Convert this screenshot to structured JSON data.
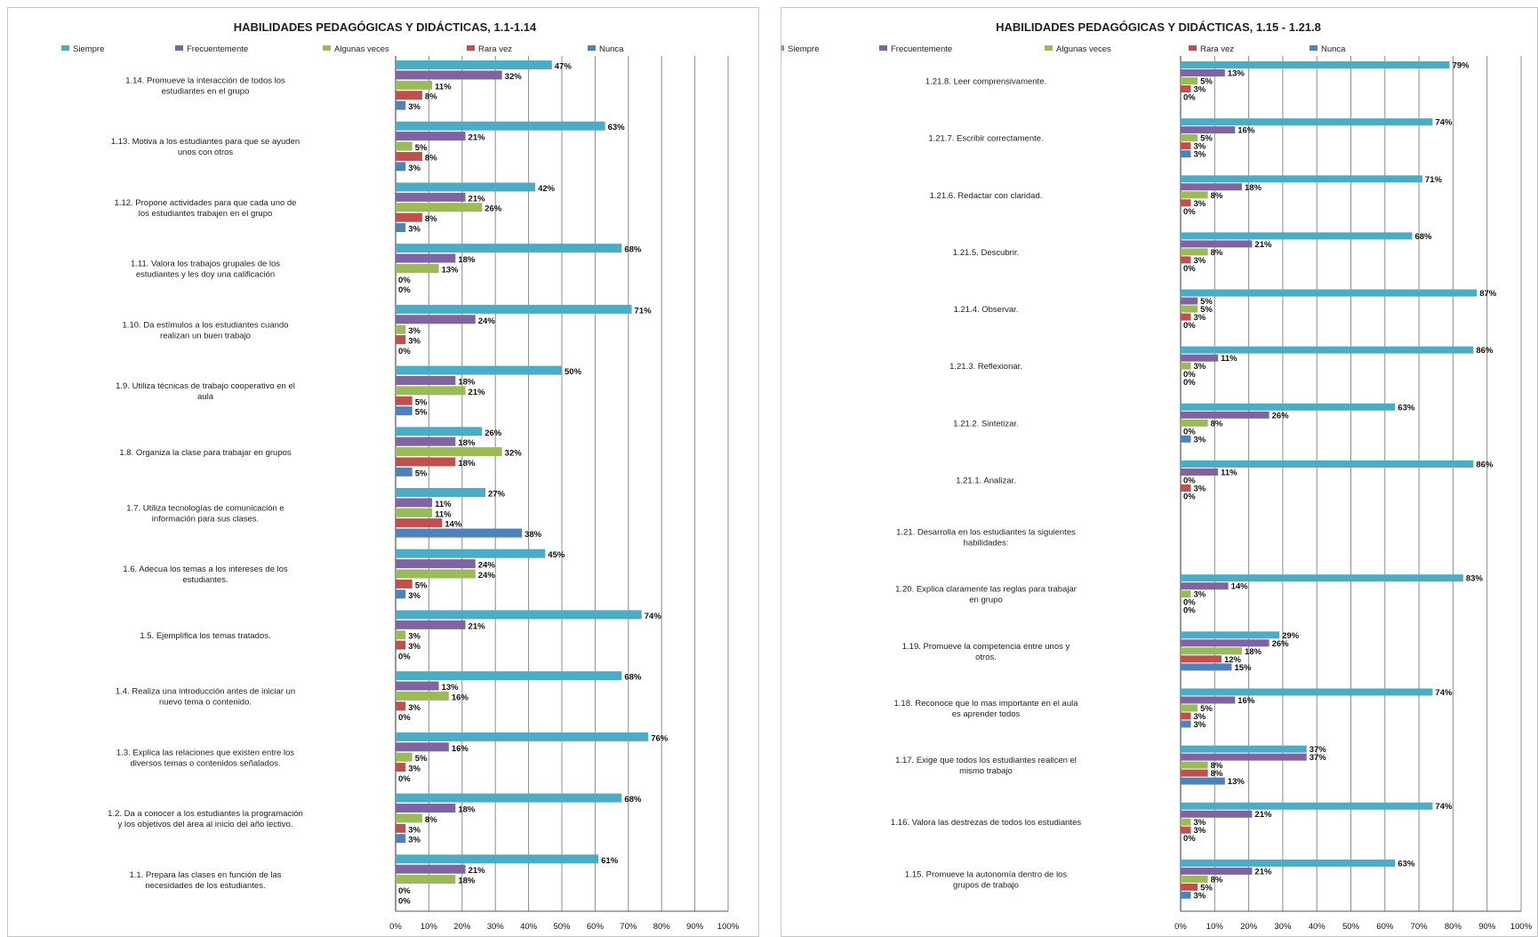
{
  "chart_data": [
    {
      "type": "bar",
      "orientation": "horizontal",
      "title": "HABILIDADES PEDAGÓGICAS Y DIDÁCTICAS, 1.1-1.14",
      "legend_position": "top",
      "xlim": [
        0,
        100
      ],
      "x_ticks": [
        "0%",
        "10%",
        "20%",
        "30%",
        "40%",
        "50%",
        "60%",
        "70%",
        "80%",
        "90%",
        "100%"
      ],
      "gridlines": true,
      "series": [
        {
          "name": "Siempre",
          "color": "#4bacc6"
        },
        {
          "name": "Frecuentemente",
          "color": "#8064a2"
        },
        {
          "name": "Algunas veces",
          "color": "#9bbb59"
        },
        {
          "name": "Rara vez",
          "color": "#c0504d"
        },
        {
          "name": "Nunca",
          "color": "#4f81bd"
        }
      ],
      "categories": [
        {
          "label": [
            "1.14.  Promueve la interacción de todos los",
            "estudiantes en el grupo"
          ],
          "values": [
            47,
            32,
            11,
            8,
            3
          ],
          "labels": [
            "47%",
            "32%",
            "11%",
            "8%",
            "3%"
          ]
        },
        {
          "label": [
            "1.13.  Motiva  a los estudiantes para que se ayuden",
            "unos    con otros"
          ],
          "values": [
            63,
            21,
            5,
            8,
            3
          ],
          "labels": [
            "63%",
            "21%",
            "5%",
            "8%",
            "3%"
          ]
        },
        {
          "label": [
            "1.12.  Propone actividades para  que cada uno de",
            "los estudiantes trabajen en el grupo"
          ],
          "values": [
            42,
            21,
            26,
            8,
            3
          ],
          "labels": [
            "42%",
            "21%",
            "26%",
            "8%",
            "3%"
          ]
        },
        {
          "label": [
            "1.11.  Valora los trabajos grupales de los",
            "estudiantes y les doy una calificación"
          ],
          "values": [
            68,
            18,
            13,
            0,
            0
          ],
          "labels": [
            "68%",
            "18%",
            "13%",
            "0%",
            "0%"
          ]
        },
        {
          "label": [
            "1.10.  Da estímulos a los estudiantes cuando",
            "realizan un buen trabajo"
          ],
          "values": [
            71,
            24,
            3,
            3,
            0
          ],
          "labels": [
            "71%",
            "24%",
            "3%",
            "3%",
            "0%"
          ]
        },
        {
          "label": [
            "1.9.  Utiliza técnicas de trabajo cooperativo en el",
            "aula"
          ],
          "values": [
            50,
            18,
            21,
            5,
            5
          ],
          "labels": [
            "50%",
            "18%",
            "21%",
            "5%",
            "5%"
          ]
        },
        {
          "label": [
            "1.8.  Organiza la clase para trabajar en grupos"
          ],
          "values": [
            26,
            18,
            32,
            18,
            5
          ],
          "labels": [
            "26%",
            "18%",
            "32%",
            "18%",
            "5%"
          ]
        },
        {
          "label": [
            "1.7.   Utiliza tecnologías de comunicación e",
            "información para sus clases."
          ],
          "values": [
            27,
            11,
            11,
            14,
            38
          ],
          "labels": [
            "27%",
            "11%",
            "11%",
            "14%",
            "38%"
          ]
        },
        {
          "label": [
            "1.6.    Adecua los temas a los intereses de los",
            "estudiantes."
          ],
          "values": [
            45,
            24,
            24,
            5,
            3
          ],
          "labels": [
            "45%",
            "24%",
            "24%",
            "5%",
            "3%"
          ]
        },
        {
          "label": [
            "1.5.     Ejemplifica los temas tratados."
          ],
          "values": [
            74,
            21,
            3,
            3,
            0
          ],
          "labels": [
            "74%",
            "21%",
            "3%",
            "3%",
            "0%"
          ]
        },
        {
          "label": [
            "1.4.  Realiza una introducción antes de iniciar un",
            "nuevo tema o contenido."
          ],
          "values": [
            68,
            13,
            16,
            3,
            0
          ],
          "labels": [
            "68%",
            "13%",
            "16%",
            "3%",
            "0%"
          ]
        },
        {
          "label": [
            "1.3.  Explica las relaciones que existen entre los",
            "diversos temas o contenidos señalados."
          ],
          "values": [
            76,
            16,
            5,
            3,
            0
          ],
          "labels": [
            "76%",
            "16%",
            "5%",
            "3%",
            "0%"
          ]
        },
        {
          "label": [
            "1.2.  Da a conocer a los estudiantes la programación",
            "y los objetivos del área al inicio del año lectivo."
          ],
          "values": [
            68,
            18,
            8,
            3,
            3
          ],
          "labels": [
            "68%",
            "18%",
            "8%",
            "3%",
            "3%"
          ]
        },
        {
          "label": [
            "1.1.     Prepara las clases en función de las",
            "necesidades de los estudiantes."
          ],
          "values": [
            61,
            21,
            18,
            0,
            0
          ],
          "labels": [
            "61%",
            "21%",
            "18%",
            "0%",
            "0%"
          ]
        }
      ]
    },
    {
      "type": "bar",
      "orientation": "horizontal",
      "title": "HABILIDADES PEDAGÓGICAS Y DIDÁCTICAS, 1.15 - 1.21.8",
      "legend_position": "top",
      "xlim": [
        0,
        100
      ],
      "x_ticks": [
        "0%",
        "10%",
        "20%",
        "30%",
        "40%",
        "50%",
        "60%",
        "70%",
        "80%",
        "90%",
        "100%"
      ],
      "gridlines": true,
      "series": [
        {
          "name": "Siempre",
          "color": "#4bacc6"
        },
        {
          "name": "Frecuentemente",
          "color": "#8064a2"
        },
        {
          "name": "Algunas veces",
          "color": "#9bbb59"
        },
        {
          "name": "Rara vez",
          "color": "#c0504d"
        },
        {
          "name": "Nunca",
          "color": "#4f81bd"
        }
      ],
      "categories": [
        {
          "label": [
            "1.21.8.  Leer comprensivamente."
          ],
          "values": [
            79,
            13,
            5,
            3,
            0
          ],
          "labels": [
            "79%",
            "13%",
            "5%",
            "3%",
            "0%"
          ]
        },
        {
          "label": [
            "1.21.7.  Escribir correctamente."
          ],
          "values": [
            74,
            16,
            5,
            3,
            3
          ],
          "labels": [
            "74%",
            "16%",
            "5%",
            "3%",
            "3%"
          ]
        },
        {
          "label": [
            "1.21.6.  Redactar con claridad."
          ],
          "values": [
            71,
            18,
            8,
            3,
            0
          ],
          "labels": [
            "71%",
            "18%",
            "8%",
            "3%",
            "0%"
          ]
        },
        {
          "label": [
            "1.21.5.  Descubrir."
          ],
          "values": [
            68,
            21,
            8,
            3,
            0
          ],
          "labels": [
            "68%",
            "21%",
            "8%",
            "3%",
            "0%"
          ]
        },
        {
          "label": [
            "1.21.4.  Observar."
          ],
          "values": [
            87,
            5,
            5,
            3,
            0
          ],
          "labels": [
            "87%",
            "5%",
            "5%",
            "3%",
            "0%"
          ]
        },
        {
          "label": [
            "1.21.3.  Reflexionar."
          ],
          "values": [
            86,
            11,
            3,
            0,
            0
          ],
          "labels": [
            "86%",
            "11%",
            "3%",
            "0%",
            "0%"
          ]
        },
        {
          "label": [
            "1.21.2.  Sintetizar."
          ],
          "values": [
            63,
            26,
            8,
            0,
            3
          ],
          "labels": [
            "63%",
            "26%",
            "8%",
            "0%",
            "3%"
          ]
        },
        {
          "label": [
            "1.21.1.  Analizar."
          ],
          "values": [
            86,
            11,
            0,
            3,
            0
          ],
          "labels": [
            "86%",
            "11%",
            "0%",
            "3%",
            "0%"
          ]
        },
        {
          "label": [
            "1.21.  Desarrolla en los estudiantes la  siguientes",
            "habilidades:"
          ],
          "values": [],
          "labels": []
        },
        {
          "label": [
            "1.20.  Explica claramente las reglas para trabajar",
            "en grupo"
          ],
          "values": [
            83,
            14,
            3,
            0,
            0
          ],
          "labels": [
            "83%",
            "14%",
            "3%",
            "0%",
            "0%"
          ]
        },
        {
          "label": [
            "1.19.  Promueve la competencia entre unos y",
            "otros."
          ],
          "values": [
            29,
            26,
            18,
            12,
            15
          ],
          "labels": [
            "29%",
            "26%",
            "18%",
            "12%",
            "15%"
          ]
        },
        {
          "label": [
            "1.18.  Reconoce que lo mas importante en el aula",
            "es aprender todos"
          ],
          "values": [
            74,
            16,
            5,
            3,
            3
          ],
          "labels": [
            "74%",
            "16%",
            "5%",
            "3%",
            "3%"
          ]
        },
        {
          "label": [
            "1.17.  Exige que todos los estudiantes realicen el",
            "mismo trabajo"
          ],
          "values": [
            37,
            37,
            8,
            8,
            13
          ],
          "labels": [
            "37%",
            "37%",
            "8%",
            "8%",
            "13%"
          ]
        },
        {
          "label": [
            "1.16.  Valora las destrezas de todos los estudiantes"
          ],
          "values": [
            74,
            21,
            3,
            3,
            0
          ],
          "labels": [
            "74%",
            "21%",
            "3%",
            "3%",
            "0%"
          ]
        },
        {
          "label": [
            "1.15.  Promueve la autonomía dentro de los",
            "grupos de trabajo"
          ],
          "values": [
            63,
            21,
            8,
            5,
            3
          ],
          "labels": [
            "63%",
            "21%",
            "8%",
            "5%",
            "3%"
          ]
        }
      ]
    }
  ]
}
